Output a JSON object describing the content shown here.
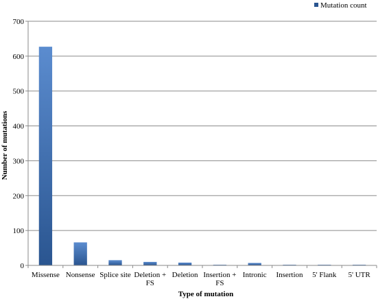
{
  "chart_data": {
    "type": "bar",
    "categories": [
      [
        "Missense"
      ],
      [
        "Nonsense"
      ],
      [
        "Splice site"
      ],
      [
        "Deletion +",
        "FS"
      ],
      [
        "Deletion"
      ],
      [
        "Insertion +",
        "FS"
      ],
      [
        "Intronic"
      ],
      [
        "Insertion"
      ],
      [
        "5' Flank"
      ],
      [
        "5' UTR"
      ]
    ],
    "series": [
      {
        "name": "Mutation count",
        "values": [
          627,
          66,
          15,
          10,
          8,
          2,
          7,
          2,
          2,
          2
        ]
      }
    ],
    "xlabel": "Type of mutation",
    "ylabel": "Number of mutations",
    "ylim": [
      0,
      700
    ],
    "yticks": [
      0,
      100,
      200,
      300,
      400,
      500,
      600,
      700
    ],
    "grid": true,
    "legend_position": "top-right",
    "colors": {
      "bar_dark": "#2a5590",
      "bar_light": "#5b8ccf",
      "grid": "#8a8a8a",
      "axis": "#8a8a8a"
    }
  }
}
